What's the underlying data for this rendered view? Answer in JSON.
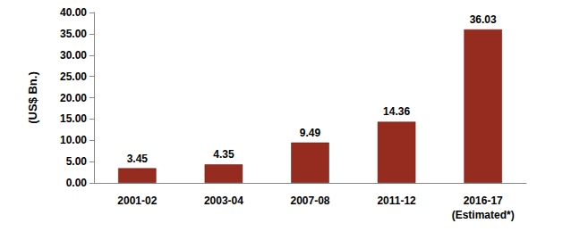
{
  "chart_data": {
    "type": "bar",
    "ylabel": "(US$ Bn.)",
    "categories": [
      "2001-02",
      "2003-04",
      "2007-08",
      "2011-12",
      "2016-17\n(Estimated*)"
    ],
    "values": [
      3.45,
      4.35,
      9.49,
      14.36,
      36.03
    ],
    "color": "#962b1f",
    "ylim": [
      0,
      40
    ],
    "yticks": [
      {
        "value": 0,
        "label": "0.00"
      },
      {
        "value": 5,
        "label": "5.00"
      },
      {
        "value": 10,
        "label": "10.00"
      },
      {
        "value": 15,
        "label": "15.00"
      },
      {
        "value": 20,
        "label": "20.00"
      },
      {
        "value": 25,
        "label": "25.00"
      },
      {
        "value": 30,
        "label": "30.00"
      },
      {
        "value": 35,
        "label": "35.00"
      },
      {
        "value": 40,
        "label": "40.00"
      }
    ],
    "grid": false,
    "data_labels": true
  }
}
